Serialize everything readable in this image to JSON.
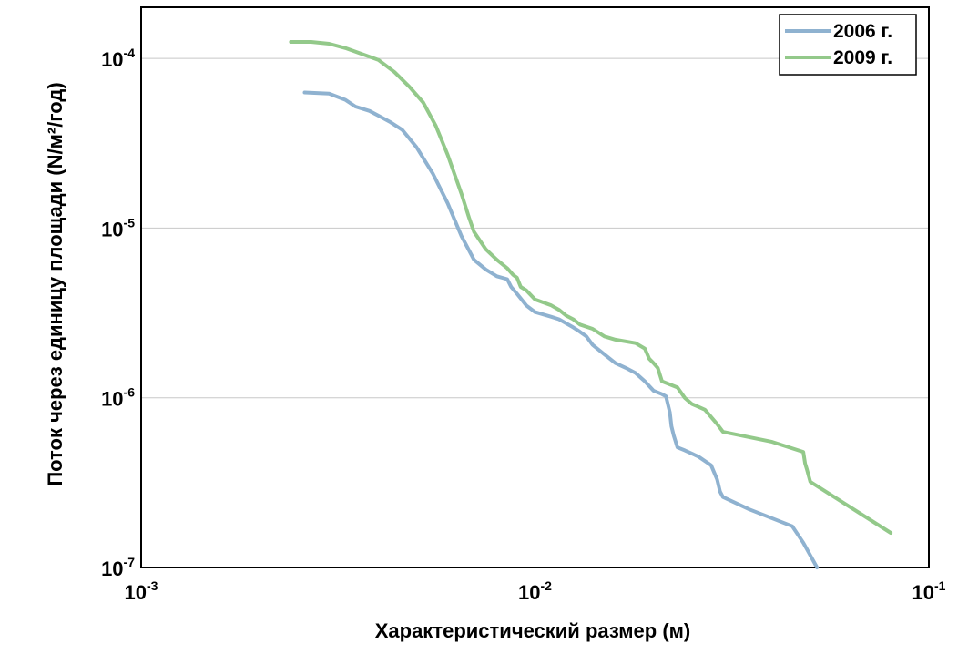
{
  "chart_data": {
    "type": "line",
    "title": "",
    "xlabel": "Характеристический размер (м)",
    "ylabel": "Поток через единицу площади (N/м²/год)",
    "xscale": "log",
    "yscale": "log",
    "xlim": [
      0.001,
      0.1
    ],
    "ylim": [
      1e-07,
      0.0002
    ],
    "grid": true,
    "legend_position": "top-right",
    "x_ticks": [
      {
        "value": 0.001,
        "base": "10",
        "exp": "-3"
      },
      {
        "value": 0.01,
        "base": "10",
        "exp": "-2"
      },
      {
        "value": 0.1,
        "base": "10",
        "exp": "-1"
      }
    ],
    "y_ticks": [
      {
        "value": 1e-07,
        "base": "10",
        "exp": "-7"
      },
      {
        "value": 1e-06,
        "base": "10",
        "exp": "-6"
      },
      {
        "value": 1e-05,
        "base": "10",
        "exp": "-5"
      },
      {
        "value": 0.0001,
        "base": "10",
        "exp": "-4"
      }
    ],
    "series": [
      {
        "name": "2006 г.",
        "color": "#8fb2d0",
        "x": [
          0.0026,
          0.003,
          0.0033,
          0.0035,
          0.0038,
          0.004,
          0.0043,
          0.0046,
          0.005,
          0.0055,
          0.006,
          0.0065,
          0.007,
          0.0075,
          0.008,
          0.0085,
          0.0087,
          0.009,
          0.0095,
          0.01,
          0.011,
          0.0115,
          0.0125,
          0.013,
          0.0135,
          0.014,
          0.015,
          0.016,
          0.017,
          0.018,
          0.019,
          0.02,
          0.021,
          0.0215,
          0.022,
          0.0222,
          0.0225,
          0.023,
          0.024,
          0.026,
          0.028,
          0.029,
          0.0295,
          0.03,
          0.035,
          0.045,
          0.048,
          0.052
        ],
        "y": [
          6.3e-05,
          6.2e-05,
          5.7e-05,
          5.2e-05,
          4.9e-05,
          4.6e-05,
          4.2e-05,
          3.8e-05,
          3e-05,
          2.1e-05,
          1.4e-05,
          9e-06,
          6.5e-06,
          5.7e-06,
          5.2e-06,
          5e-06,
          4.5e-06,
          4.1e-06,
          3.5e-06,
          3.2e-06,
          3e-06,
          2.9e-06,
          2.6e-06,
          2.45e-06,
          2.3e-06,
          2.05e-06,
          1.8e-06,
          1.6e-06,
          1.5e-06,
          1.4e-06,
          1.25e-06,
          1.1e-06,
          1.05e-06,
          1.02e-06,
          8.2e-07,
          6.8e-07,
          6e-07,
          5.1e-07,
          4.9e-07,
          4.5e-07,
          4e-07,
          3.3e-07,
          2.8e-07,
          2.6e-07,
          2.2e-07,
          1.75e-07,
          1.4e-07,
          1e-07
        ]
      },
      {
        "name": "2009 г.",
        "color": "#93c98a",
        "x": [
          0.0024,
          0.0027,
          0.003,
          0.0033,
          0.0036,
          0.004,
          0.0044,
          0.0048,
          0.0052,
          0.0056,
          0.006,
          0.0065,
          0.0068,
          0.007,
          0.0075,
          0.008,
          0.0085,
          0.0088,
          0.009,
          0.0092,
          0.0095,
          0.01,
          0.011,
          0.0115,
          0.012,
          0.0125,
          0.013,
          0.014,
          0.015,
          0.016,
          0.018,
          0.019,
          0.0195,
          0.02,
          0.0205,
          0.021,
          0.023,
          0.024,
          0.025,
          0.027,
          0.029,
          0.03,
          0.04,
          0.048,
          0.0485,
          0.049,
          0.05,
          0.08
        ],
        "y": [
          0.000125,
          0.000125,
          0.000122,
          0.000115,
          0.000107,
          9.8e-05,
          8.3e-05,
          6.8e-05,
          5.5e-05,
          4e-05,
          2.7e-05,
          1.6e-05,
          1.15e-05,
          9.5e-06,
          7.5e-06,
          6.5e-06,
          5.8e-06,
          5.3e-06,
          5.1e-06,
          4.5e-06,
          4.3e-06,
          3.8e-06,
          3.5e-06,
          3.3e-06,
          3.05e-06,
          2.9e-06,
          2.7e-06,
          2.55e-06,
          2.3e-06,
          2.2e-06,
          2.1e-06,
          1.95e-06,
          1.7e-06,
          1.6e-06,
          1.5e-06,
          1.25e-06,
          1.15e-06,
          1e-06,
          9.2e-07,
          8.5e-07,
          7e-07,
          6.3e-07,
          5.5e-07,
          4.8e-07,
          4.1e-07,
          3.8e-07,
          3.2e-07,
          1.6e-07
        ]
      }
    ]
  }
}
